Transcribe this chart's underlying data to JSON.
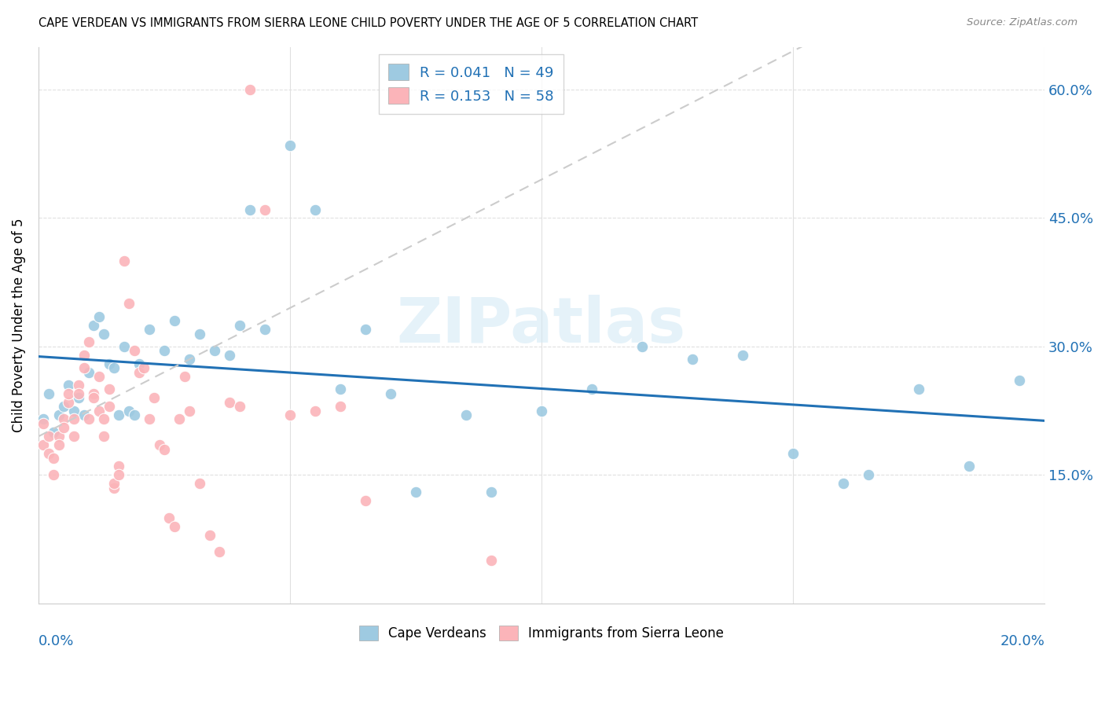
{
  "title": "CAPE VERDEAN VS IMMIGRANTS FROM SIERRA LEONE CHILD POVERTY UNDER THE AGE OF 5 CORRELATION CHART",
  "source": "Source: ZipAtlas.com",
  "ylabel": "Child Poverty Under the Age of 5",
  "xlim": [
    0,
    0.2
  ],
  "ylim": [
    0,
    0.65
  ],
  "ytick_vals": [
    0.15,
    0.3,
    0.45,
    0.6
  ],
  "ytick_labels": [
    "15.0%",
    "30.0%",
    "45.0%",
    "60.0%"
  ],
  "xtick_vals": [
    0.0,
    0.05,
    0.1,
    0.15,
    0.2
  ],
  "R_blue": 0.041,
  "N_blue": 49,
  "R_pink": 0.153,
  "N_pink": 58,
  "blue_scatter_color": "#9ecae1",
  "pink_scatter_color": "#fbb4b9",
  "blue_line_color": "#2171b5",
  "pink_line_color": "#f768a1",
  "legend_label_blue": "Cape Verdeans",
  "legend_label_pink": "Immigrants from Sierra Leone",
  "blue_scatter_x": [
    0.001,
    0.002,
    0.003,
    0.004,
    0.005,
    0.006,
    0.007,
    0.008,
    0.009,
    0.01,
    0.011,
    0.012,
    0.013,
    0.014,
    0.015,
    0.016,
    0.017,
    0.018,
    0.019,
    0.02,
    0.022,
    0.025,
    0.027,
    0.03,
    0.032,
    0.035,
    0.038,
    0.04,
    0.042,
    0.045,
    0.05,
    0.055,
    0.06,
    0.065,
    0.07,
    0.075,
    0.085,
    0.09,
    0.1,
    0.11,
    0.12,
    0.13,
    0.14,
    0.15,
    0.16,
    0.165,
    0.175,
    0.185,
    0.195
  ],
  "blue_scatter_y": [
    0.215,
    0.245,
    0.2,
    0.22,
    0.23,
    0.255,
    0.225,
    0.24,
    0.22,
    0.27,
    0.325,
    0.335,
    0.315,
    0.28,
    0.275,
    0.22,
    0.3,
    0.225,
    0.22,
    0.28,
    0.32,
    0.295,
    0.33,
    0.285,
    0.315,
    0.295,
    0.29,
    0.325,
    0.46,
    0.32,
    0.535,
    0.46,
    0.25,
    0.32,
    0.245,
    0.13,
    0.22,
    0.13,
    0.225,
    0.25,
    0.3,
    0.285,
    0.29,
    0.175,
    0.14,
    0.15,
    0.25,
    0.16,
    0.26
  ],
  "pink_scatter_x": [
    0.001,
    0.001,
    0.002,
    0.002,
    0.003,
    0.003,
    0.004,
    0.004,
    0.005,
    0.005,
    0.006,
    0.006,
    0.007,
    0.007,
    0.008,
    0.008,
    0.009,
    0.009,
    0.01,
    0.01,
    0.011,
    0.011,
    0.012,
    0.012,
    0.013,
    0.013,
    0.014,
    0.014,
    0.015,
    0.015,
    0.016,
    0.016,
    0.017,
    0.018,
    0.019,
    0.02,
    0.021,
    0.022,
    0.023,
    0.024,
    0.025,
    0.026,
    0.027,
    0.028,
    0.029,
    0.03,
    0.032,
    0.034,
    0.036,
    0.038,
    0.04,
    0.042,
    0.045,
    0.05,
    0.055,
    0.06,
    0.065,
    0.09
  ],
  "pink_scatter_y": [
    0.21,
    0.185,
    0.195,
    0.175,
    0.17,
    0.15,
    0.195,
    0.185,
    0.215,
    0.205,
    0.235,
    0.245,
    0.215,
    0.195,
    0.255,
    0.245,
    0.29,
    0.275,
    0.305,
    0.215,
    0.245,
    0.24,
    0.265,
    0.225,
    0.215,
    0.195,
    0.23,
    0.25,
    0.135,
    0.14,
    0.16,
    0.15,
    0.4,
    0.35,
    0.295,
    0.27,
    0.275,
    0.215,
    0.24,
    0.185,
    0.18,
    0.1,
    0.09,
    0.215,
    0.265,
    0.225,
    0.14,
    0.08,
    0.06,
    0.235,
    0.23,
    0.6,
    0.46,
    0.22,
    0.225,
    0.23,
    0.12,
    0.05
  ]
}
